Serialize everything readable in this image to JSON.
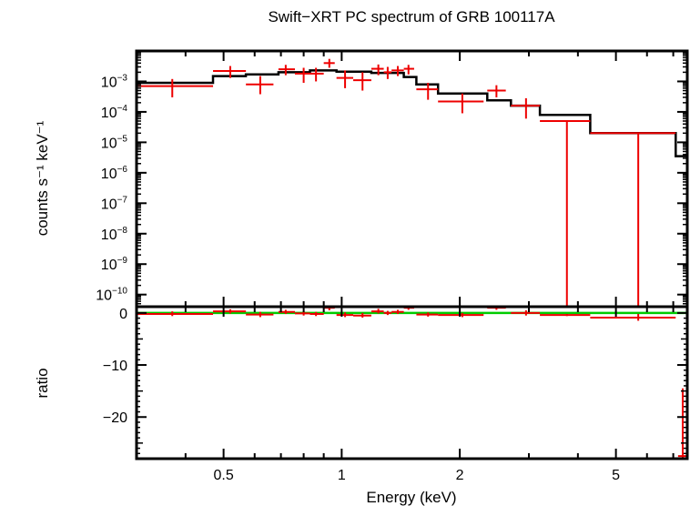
{
  "chart_data": {
    "type": "scatter",
    "title": "Swift−XRT PC spectrum of GRB 100117A",
    "xlabel": "Energy (keV)",
    "x_scale": "log",
    "xlim": [
      0.3,
      7.6
    ],
    "x_ticks": [
      {
        "value": 0.5,
        "label": "0.5"
      },
      {
        "value": 1,
        "label": "1"
      },
      {
        "value": 2,
        "label": "2"
      },
      {
        "value": 5,
        "label": "5"
      }
    ],
    "panels": [
      {
        "name": "spectrum",
        "ylabel": "counts s⁻¹ keV⁻¹",
        "y_scale": "log",
        "ylim": [
          4e-11,
          0.01
        ],
        "y_ticks": [
          {
            "value": 0.001,
            "base": "10",
            "exp": "−3"
          },
          {
            "value": 0.0001,
            "base": "10",
            "exp": "−4"
          },
          {
            "value": 1e-05,
            "base": "10",
            "exp": "−5"
          },
          {
            "value": 1e-06,
            "base": "10",
            "exp": "−6"
          },
          {
            "value": 1e-07,
            "base": "10",
            "exp": "−7"
          },
          {
            "value": 1e-08,
            "base": "10",
            "exp": "−8"
          },
          {
            "value": 1e-09,
            "base": "10",
            "exp": "−9"
          },
          {
            "value": 1e-10,
            "base": "10",
            "exp": "−10"
          }
        ],
        "data_points": [
          {
            "x": 0.37,
            "x_lo": 0.3,
            "x_hi": 0.47,
            "y": 0.0007,
            "y_lo": 0.0003,
            "y_hi": 0.0012
          },
          {
            "x": 0.52,
            "x_lo": 0.47,
            "x_hi": 0.57,
            "y": 0.0022,
            "y_lo": 0.0013,
            "y_hi": 0.0032
          },
          {
            "x": 0.62,
            "x_lo": 0.57,
            "x_hi": 0.67,
            "y": 0.0008,
            "y_lo": 0.00038,
            "y_hi": 0.0015
          },
          {
            "x": 0.72,
            "x_lo": 0.69,
            "x_hi": 0.76,
            "y": 0.0025,
            "y_lo": 0.0016,
            "y_hi": 0.0035
          },
          {
            "x": 0.8,
            "x_lo": 0.76,
            "x_hi": 0.83,
            "y": 0.0018,
            "y_lo": 0.0009,
            "y_hi": 0.0028
          },
          {
            "x": 0.86,
            "x_lo": 0.83,
            "x_hi": 0.9,
            "y": 0.0018,
            "y_lo": 0.001,
            "y_hi": 0.0028
          },
          {
            "x": 0.93,
            "x_lo": 0.9,
            "x_hi": 0.96,
            "y": 0.004,
            "y_lo": 0.0028,
            "y_hi": 0.0055
          },
          {
            "x": 1.02,
            "x_lo": 0.97,
            "x_hi": 1.07,
            "y": 0.0013,
            "y_lo": 0.0006,
            "y_hi": 0.0023
          },
          {
            "x": 1.13,
            "x_lo": 1.07,
            "x_hi": 1.19,
            "y": 0.0011,
            "y_lo": 0.0005,
            "y_hi": 0.002
          },
          {
            "x": 1.24,
            "x_lo": 1.19,
            "x_hi": 1.28,
            "y": 0.0026,
            "y_lo": 0.0016,
            "y_hi": 0.0036
          },
          {
            "x": 1.31,
            "x_lo": 1.28,
            "x_hi": 1.34,
            "y": 0.002,
            "y_lo": 0.0012,
            "y_hi": 0.003
          },
          {
            "x": 1.39,
            "x_lo": 1.34,
            "x_hi": 1.44,
            "y": 0.0023,
            "y_lo": 0.0015,
            "y_hi": 0.0032
          },
          {
            "x": 1.48,
            "x_lo": 1.44,
            "x_hi": 1.53,
            "y": 0.0026,
            "y_lo": 0.0017,
            "y_hi": 0.0035
          },
          {
            "x": 1.66,
            "x_lo": 1.55,
            "x_hi": 1.76,
            "y": 0.00055,
            "y_lo": 0.00025,
            "y_hi": 0.0009
          },
          {
            "x": 2.03,
            "x_lo": 1.76,
            "x_hi": 2.3,
            "y": 0.00022,
            "y_lo": 9e-05,
            "y_hi": 0.0004
          },
          {
            "x": 2.48,
            "x_lo": 2.35,
            "x_hi": 2.62,
            "y": 0.0005,
            "y_lo": 0.0003,
            "y_hi": 0.00075
          },
          {
            "x": 2.95,
            "x_lo": 2.7,
            "x_hi": 3.2,
            "y": 0.00016,
            "y_lo": 6e-05,
            "y_hi": 0.00028
          },
          {
            "x": 3.75,
            "x_lo": 3.2,
            "x_hi": 4.3,
            "y": 5e-05,
            "y_lo": 4e-11,
            "y_hi": 5e-05
          },
          {
            "x": 5.7,
            "x_lo": 4.3,
            "x_hi": 7.1,
            "y": 2e-05,
            "y_lo": 4e-11,
            "y_hi": 2e-05
          }
        ],
        "model_steps": [
          {
            "x0": 0.3,
            "x1": 0.47,
            "y": 0.0009
          },
          {
            "x0": 0.47,
            "x1": 0.57,
            "y": 0.0015
          },
          {
            "x0": 0.57,
            "x1": 0.69,
            "y": 0.0017
          },
          {
            "x0": 0.69,
            "x1": 0.83,
            "y": 0.002
          },
          {
            "x0": 0.83,
            "x1": 0.97,
            "y": 0.0023
          },
          {
            "x0": 0.97,
            "x1": 1.19,
            "y": 0.0021
          },
          {
            "x0": 1.19,
            "x1": 1.44,
            "y": 0.0019
          },
          {
            "x0": 1.44,
            "x1": 1.55,
            "y": 0.0014
          },
          {
            "x0": 1.55,
            "x1": 1.76,
            "y": 0.0008
          },
          {
            "x0": 1.76,
            "x1": 2.35,
            "y": 0.0004
          },
          {
            "x0": 2.35,
            "x1": 2.7,
            "y": 0.00024
          },
          {
            "x0": 2.7,
            "x1": 3.2,
            "y": 0.00016
          },
          {
            "x0": 3.2,
            "x1": 4.3,
            "y": 8e-05
          },
          {
            "x0": 4.3,
            "x1": 7.1,
            "y": 2e-05
          },
          {
            "x0": 7.1,
            "x1": 7.6,
            "y": 3.5e-06
          }
        ]
      },
      {
        "name": "ratio",
        "ylabel": "ratio",
        "y_scale": "linear",
        "ylim": [
          -28,
          1.2
        ],
        "y_ticks": [
          {
            "value": 0,
            "label": "0"
          },
          {
            "value": -10,
            "label": "−10"
          },
          {
            "value": -20,
            "label": "−20"
          }
        ],
        "reference_line": {
          "y": 0,
          "color": "#00cc00"
        },
        "data_points": [
          {
            "x": 0.37,
            "x_lo": 0.3,
            "x_hi": 0.47,
            "y": -0.2,
            "y_lo": -0.6,
            "y_hi": 0.3
          },
          {
            "x": 0.52,
            "x_lo": 0.47,
            "x_hi": 0.57,
            "y": 0.3,
            "y_lo": -0.1,
            "y_hi": 0.7
          },
          {
            "x": 0.62,
            "x_lo": 0.57,
            "x_hi": 0.67,
            "y": -0.3,
            "y_lo": -0.8,
            "y_hi": 0.2
          },
          {
            "x": 0.72,
            "x_lo": 0.69,
            "x_hi": 0.76,
            "y": 0.2,
            "y_lo": -0.2,
            "y_hi": 0.6
          },
          {
            "x": 0.8,
            "x_lo": 0.76,
            "x_hi": 0.83,
            "y": -0.1,
            "y_lo": -0.5,
            "y_hi": 0.3
          },
          {
            "x": 0.86,
            "x_lo": 0.83,
            "x_hi": 0.9,
            "y": -0.2,
            "y_lo": -0.6,
            "y_hi": 0.2
          },
          {
            "x": 0.93,
            "x_lo": 0.9,
            "x_hi": 0.96,
            "y": 1.0,
            "y_lo": 0.5,
            "y_hi": 1.2
          },
          {
            "x": 1.02,
            "x_lo": 0.97,
            "x_hi": 1.07,
            "y": -0.4,
            "y_lo": -0.8,
            "y_hi": 0.1
          },
          {
            "x": 1.13,
            "x_lo": 1.07,
            "x_hi": 1.19,
            "y": -0.5,
            "y_lo": -0.9,
            "y_hi": 0.0
          },
          {
            "x": 1.24,
            "x_lo": 1.19,
            "x_hi": 1.28,
            "y": 0.3,
            "y_lo": -0.1,
            "y_hi": 0.8
          },
          {
            "x": 1.31,
            "x_lo": 1.28,
            "x_hi": 1.34,
            "y": 0.0,
            "y_lo": -0.4,
            "y_hi": 0.4
          },
          {
            "x": 1.39,
            "x_lo": 1.34,
            "x_hi": 1.44,
            "y": 0.2,
            "y_lo": -0.2,
            "y_hi": 0.6
          },
          {
            "x": 1.48,
            "x_lo": 1.44,
            "x_hi": 1.53,
            "y": 1.0,
            "y_lo": 0.6,
            "y_hi": 1.2
          },
          {
            "x": 1.66,
            "x_lo": 1.55,
            "x_hi": 1.76,
            "y": -0.3,
            "y_lo": -0.7,
            "y_hi": 0.1
          },
          {
            "x": 2.03,
            "x_lo": 1.76,
            "x_hi": 2.3,
            "y": -0.4,
            "y_lo": -0.8,
            "y_hi": 0.0
          },
          {
            "x": 2.48,
            "x_lo": 2.35,
            "x_hi": 2.62,
            "y": 1.0,
            "y_lo": 0.6,
            "y_hi": 1.2
          },
          {
            "x": 2.95,
            "x_lo": 2.7,
            "x_hi": 3.2,
            "y": 0.0,
            "y_lo": -0.5,
            "y_hi": 0.5
          },
          {
            "x": 3.75,
            "x_lo": 3.2,
            "x_hi": 4.3,
            "y": -0.4,
            "y_lo": -0.6,
            "y_hi": -0.2
          },
          {
            "x": 5.7,
            "x_lo": 4.3,
            "x_hi": 7.1,
            "y": -0.9,
            "y_lo": -1.5,
            "y_hi": -0.2
          },
          {
            "x": 7.4,
            "x_lo": 7.2,
            "x_hi": 7.6,
            "y": -27.5,
            "y_lo": -28,
            "y_hi": -14.5
          }
        ]
      }
    ],
    "colors": {
      "data": "#ee0000",
      "model": "#000000",
      "reference": "#00cc00",
      "frame": "#000000"
    },
    "grid": false,
    "legend": "none"
  }
}
